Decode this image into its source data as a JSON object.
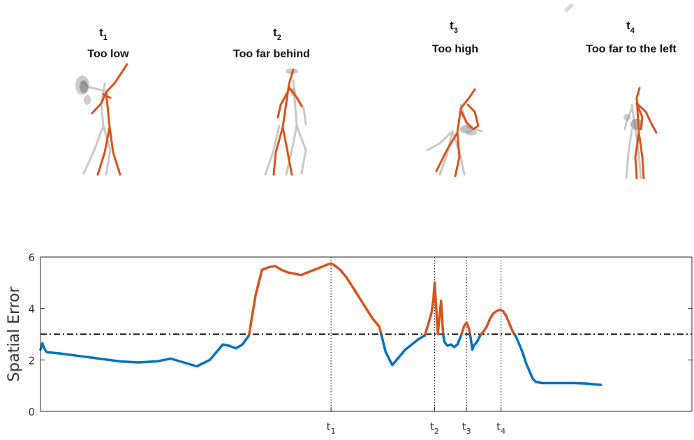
{
  "figures": [
    {
      "time_label": "t",
      "time_sub": "1",
      "caption": "Too low"
    },
    {
      "time_label": "t",
      "time_sub": "2",
      "caption": "Too far behind"
    },
    {
      "time_label": "t",
      "time_sub": "3",
      "caption": "Too high"
    },
    {
      "time_label": "t",
      "time_sub": "4",
      "caption": "Too far to the left"
    }
  ],
  "colors": {
    "above_threshold": "#d95319",
    "below_threshold": "#0072bd",
    "reference_skeleton": "#c8c8c8",
    "uncertainty": "#8c8c8c",
    "threshold_line": "#000000"
  },
  "chart_data": {
    "type": "line",
    "title": "",
    "xlabel": "",
    "ylabel": "Spatial Error",
    "ylim": [
      0,
      6
    ],
    "yticks": [
      0,
      2,
      4,
      6
    ],
    "xlim": [
      0,
      100
    ],
    "threshold": 3,
    "grid": false,
    "vertical_markers": [
      {
        "label": "t",
        "sub": "1",
        "x": 44.6
      },
      {
        "label": "t",
        "sub": "2",
        "x": 60.5
      },
      {
        "label": "t",
        "sub": "3",
        "x": 65.4
      },
      {
        "label": "t",
        "sub": "4",
        "x": 70.7
      }
    ],
    "series": [
      {
        "x": [
          0,
          0.3,
          0.5,
          0.8,
          1,
          3,
          6,
          9,
          12,
          15,
          18,
          20,
          22,
          24,
          26,
          28,
          29,
          30,
          31,
          32,
          33,
          34,
          35,
          36,
          37,
          38,
          39,
          40,
          41,
          42,
          43,
          44,
          44.6,
          45,
          46,
          47,
          48,
          49,
          50,
          51,
          52,
          53,
          54,
          55,
          56,
          57,
          58,
          59,
          60,
          60.3,
          60.5,
          60.7,
          61,
          61.3,
          61.5,
          61.8,
          62,
          62.3,
          62.5,
          63,
          63.5,
          64,
          64.5,
          65,
          65.4,
          65.8,
          66,
          66.3,
          66.5,
          67,
          67.5,
          68,
          68.5,
          69,
          69.5,
          70,
          70.5,
          71,
          71.5,
          72,
          72.5,
          73,
          73.5,
          74,
          74.5,
          75,
          75.5,
          76,
          77,
          78,
          80,
          82,
          84,
          85,
          86
        ],
        "y": [
          2.4,
          2.65,
          2.5,
          2.35,
          2.3,
          2.25,
          2.15,
          2.05,
          1.95,
          1.9,
          1.95,
          2.05,
          1.9,
          1.75,
          2.0,
          2.6,
          2.55,
          2.45,
          2.6,
          2.95,
          4.5,
          5.5,
          5.6,
          5.65,
          5.5,
          5.4,
          5.35,
          5.3,
          5.4,
          5.5,
          5.6,
          5.7,
          5.75,
          5.7,
          5.5,
          5.2,
          4.8,
          4.4,
          4.0,
          3.6,
          3.3,
          2.3,
          1.8,
          2.1,
          2.4,
          2.6,
          2.8,
          2.95,
          3.8,
          4.3,
          5.0,
          4.2,
          3.0,
          3.8,
          4.3,
          3.0,
          2.7,
          2.6,
          2.55,
          2.6,
          2.5,
          2.6,
          2.9,
          3.3,
          3.45,
          3.2,
          2.9,
          2.4,
          2.55,
          2.7,
          2.95,
          3.1,
          3.3,
          3.6,
          3.8,
          3.9,
          3.95,
          3.9,
          3.7,
          3.4,
          3.1,
          2.9,
          2.6,
          2.3,
          1.9,
          1.6,
          1.3,
          1.15,
          1.1,
          1.1,
          1.1,
          1.1,
          1.08,
          1.05,
          1.03
        ]
      }
    ]
  }
}
